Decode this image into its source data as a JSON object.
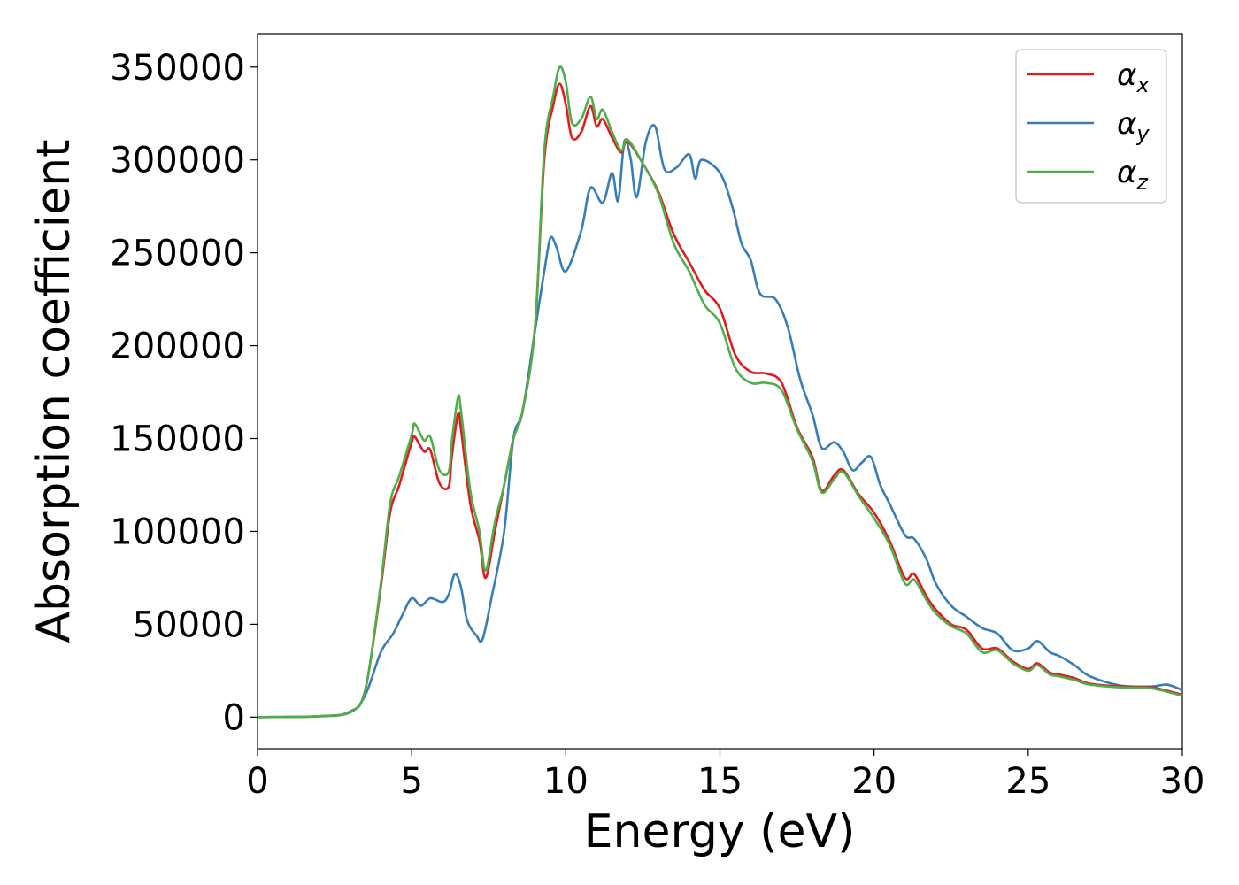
{
  "chart_data": {
    "type": "line",
    "title": "",
    "xlabel": "Energy (eV)",
    "ylabel": "Absorption coefficient",
    "xlim": [
      0,
      30
    ],
    "ylim": [
      -17000,
      368000
    ],
    "xticks": [
      0,
      5,
      10,
      15,
      20,
      25,
      30
    ],
    "yticks": [
      0,
      50000,
      100000,
      150000,
      200000,
      250000,
      300000,
      350000
    ],
    "grid": false,
    "legend_position": "top-right",
    "series": [
      {
        "name": "α_x",
        "label_main": "α",
        "label_sub": "x",
        "color": "#e41a1c",
        "points": [
          [
            0,
            0
          ],
          [
            2,
            500
          ],
          [
            3,
            3000
          ],
          [
            3.5,
            15000
          ],
          [
            4,
            70000
          ],
          [
            4.3,
            110000
          ],
          [
            4.6,
            125000
          ],
          [
            5,
            148000
          ],
          [
            5.1,
            151000
          ],
          [
            5.4,
            143000
          ],
          [
            5.6,
            144000
          ],
          [
            5.9,
            126000
          ],
          [
            6.2,
            124000
          ],
          [
            6.3,
            140000
          ],
          [
            6.5,
            163000
          ],
          [
            6.6,
            155000
          ],
          [
            6.9,
            115000
          ],
          [
            7.2,
            95000
          ],
          [
            7.4,
            75000
          ],
          [
            7.7,
            100000
          ],
          [
            8,
            125000
          ],
          [
            8.3,
            150000
          ],
          [
            8.6,
            165000
          ],
          [
            9,
            210000
          ],
          [
            9.3,
            300000
          ],
          [
            9.6,
            330000
          ],
          [
            9.8,
            341000
          ],
          [
            10,
            330000
          ],
          [
            10.2,
            312000
          ],
          [
            10.5,
            315000
          ],
          [
            10.8,
            329000
          ],
          [
            11,
            318000
          ],
          [
            11.2,
            322000
          ],
          [
            11.5,
            312000
          ],
          [
            11.8,
            304000
          ],
          [
            12,
            310000
          ],
          [
            12.5,
            298000
          ],
          [
            13,
            283000
          ],
          [
            13.5,
            260000
          ],
          [
            14,
            245000
          ],
          [
            14.5,
            230000
          ],
          [
            15,
            220000
          ],
          [
            15.5,
            195000
          ],
          [
            16,
            186000
          ],
          [
            16.5,
            185000
          ],
          [
            17,
            180000
          ],
          [
            17.5,
            156000
          ],
          [
            18,
            140000
          ],
          [
            18.3,
            122000
          ],
          [
            18.7,
            130000
          ],
          [
            19,
            133000
          ],
          [
            19.5,
            120000
          ],
          [
            20,
            110000
          ],
          [
            20.5,
            95000
          ],
          [
            21,
            75000
          ],
          [
            21.3,
            77000
          ],
          [
            21.7,
            65000
          ],
          [
            22,
            58000
          ],
          [
            22.5,
            50000
          ],
          [
            23,
            47000
          ],
          [
            23.5,
            37000
          ],
          [
            24,
            37000
          ],
          [
            24.5,
            30000
          ],
          [
            25,
            26000
          ],
          [
            25.3,
            29000
          ],
          [
            25.7,
            24000
          ],
          [
            26,
            23000
          ],
          [
            26.5,
            21000
          ],
          [
            27,
            18000
          ],
          [
            28,
            16500
          ],
          [
            29,
            16000
          ],
          [
            30,
            12000
          ]
        ]
      },
      {
        "name": "α_y",
        "label_main": "α",
        "label_sub": "y",
        "color": "#377eb8",
        "points": [
          [
            0,
            0
          ],
          [
            2,
            400
          ],
          [
            3,
            2500
          ],
          [
            3.5,
            12000
          ],
          [
            4,
            35000
          ],
          [
            4.4,
            45000
          ],
          [
            4.7,
            55000
          ],
          [
            5,
            64000
          ],
          [
            5.3,
            60000
          ],
          [
            5.6,
            64000
          ],
          [
            6,
            62000
          ],
          [
            6.2,
            66000
          ],
          [
            6.4,
            77000
          ],
          [
            6.6,
            70000
          ],
          [
            6.8,
            52000
          ],
          [
            7.1,
            44000
          ],
          [
            7.3,
            42000
          ],
          [
            7.6,
            65000
          ],
          [
            8,
            100000
          ],
          [
            8.3,
            150000
          ],
          [
            8.6,
            165000
          ],
          [
            9,
            208000
          ],
          [
            9.3,
            240000
          ],
          [
            9.5,
            258000
          ],
          [
            9.7,
            253000
          ],
          [
            10,
            240000
          ],
          [
            10.5,
            262000
          ],
          [
            10.8,
            285000
          ],
          [
            11.2,
            277000
          ],
          [
            11.5,
            293000
          ],
          [
            11.7,
            278000
          ],
          [
            11.9,
            310000
          ],
          [
            12.1,
            301000
          ],
          [
            12.3,
            280000
          ],
          [
            12.6,
            310000
          ],
          [
            12.9,
            318000
          ],
          [
            13.2,
            295000
          ],
          [
            13.6,
            296000
          ],
          [
            14,
            303000
          ],
          [
            14.2,
            290000
          ],
          [
            14.4,
            300000
          ],
          [
            15,
            293000
          ],
          [
            15.4,
            275000
          ],
          [
            15.7,
            255000
          ],
          [
            16,
            246000
          ],
          [
            16.3,
            228000
          ],
          [
            16.8,
            225000
          ],
          [
            17.2,
            210000
          ],
          [
            17.6,
            182000
          ],
          [
            18,
            163000
          ],
          [
            18.3,
            145000
          ],
          [
            18.7,
            148000
          ],
          [
            19,
            143000
          ],
          [
            19.3,
            133000
          ],
          [
            19.6,
            137000
          ],
          [
            19.9,
            140000
          ],
          [
            20.2,
            125000
          ],
          [
            20.5,
            115000
          ],
          [
            21,
            98000
          ],
          [
            21.3,
            96000
          ],
          [
            21.7,
            85000
          ],
          [
            22,
            72000
          ],
          [
            22.5,
            60000
          ],
          [
            23,
            54000
          ],
          [
            23.5,
            48000
          ],
          [
            24,
            45000
          ],
          [
            24.5,
            36000
          ],
          [
            25,
            37000
          ],
          [
            25.3,
            41000
          ],
          [
            25.7,
            35000
          ],
          [
            26,
            33000
          ],
          [
            26.5,
            28000
          ],
          [
            27,
            22000
          ],
          [
            28,
            17000
          ],
          [
            29,
            16500
          ],
          [
            29.5,
            17500
          ],
          [
            30,
            14500
          ]
        ]
      },
      {
        "name": "α_z",
        "label_main": "α",
        "label_sub": "z",
        "color": "#4daf4a",
        "points": [
          [
            0,
            0
          ],
          [
            2,
            500
          ],
          [
            3,
            3000
          ],
          [
            3.5,
            15000
          ],
          [
            4,
            72000
          ],
          [
            4.3,
            115000
          ],
          [
            4.6,
            130000
          ],
          [
            5,
            152000
          ],
          [
            5.1,
            158000
          ],
          [
            5.4,
            149000
          ],
          [
            5.6,
            151000
          ],
          [
            5.9,
            133000
          ],
          [
            6.2,
            132000
          ],
          [
            6.3,
            148000
          ],
          [
            6.5,
            172000
          ],
          [
            6.6,
            165000
          ],
          [
            6.9,
            122000
          ],
          [
            7.2,
            100000
          ],
          [
            7.4,
            79000
          ],
          [
            7.7,
            105000
          ],
          [
            8,
            125000
          ],
          [
            8.3,
            150000
          ],
          [
            8.6,
            165000
          ],
          [
            9,
            210000
          ],
          [
            9.3,
            305000
          ],
          [
            9.6,
            335000
          ],
          [
            9.8,
            350000
          ],
          [
            10,
            342000
          ],
          [
            10.2,
            320000
          ],
          [
            10.5,
            322000
          ],
          [
            10.8,
            334000
          ],
          [
            11,
            322000
          ],
          [
            11.2,
            327000
          ],
          [
            11.5,
            315000
          ],
          [
            11.8,
            305000
          ],
          [
            12,
            311000
          ],
          [
            12.5,
            298000
          ],
          [
            13,
            282000
          ],
          [
            13.5,
            255000
          ],
          [
            14,
            240000
          ],
          [
            14.5,
            222000
          ],
          [
            15,
            212000
          ],
          [
            15.5,
            188000
          ],
          [
            16,
            180000
          ],
          [
            16.5,
            180000
          ],
          [
            17,
            176000
          ],
          [
            17.5,
            155000
          ],
          [
            18,
            138000
          ],
          [
            18.3,
            121000
          ],
          [
            18.7,
            128000
          ],
          [
            19,
            132000
          ],
          [
            19.5,
            119000
          ],
          [
            20,
            107000
          ],
          [
            20.5,
            93000
          ],
          [
            21,
            72000
          ],
          [
            21.3,
            74000
          ],
          [
            21.7,
            63000
          ],
          [
            22,
            56000
          ],
          [
            22.5,
            49000
          ],
          [
            23,
            45000
          ],
          [
            23.5,
            35000
          ],
          [
            24,
            36000
          ],
          [
            24.5,
            29000
          ],
          [
            25,
            25000
          ],
          [
            25.3,
            28000
          ],
          [
            25.7,
            23000
          ],
          [
            26,
            22000
          ],
          [
            26.5,
            20000
          ],
          [
            27,
            17500
          ],
          [
            28,
            16000
          ],
          [
            29,
            15500
          ],
          [
            30,
            11500
          ]
        ]
      }
    ]
  }
}
